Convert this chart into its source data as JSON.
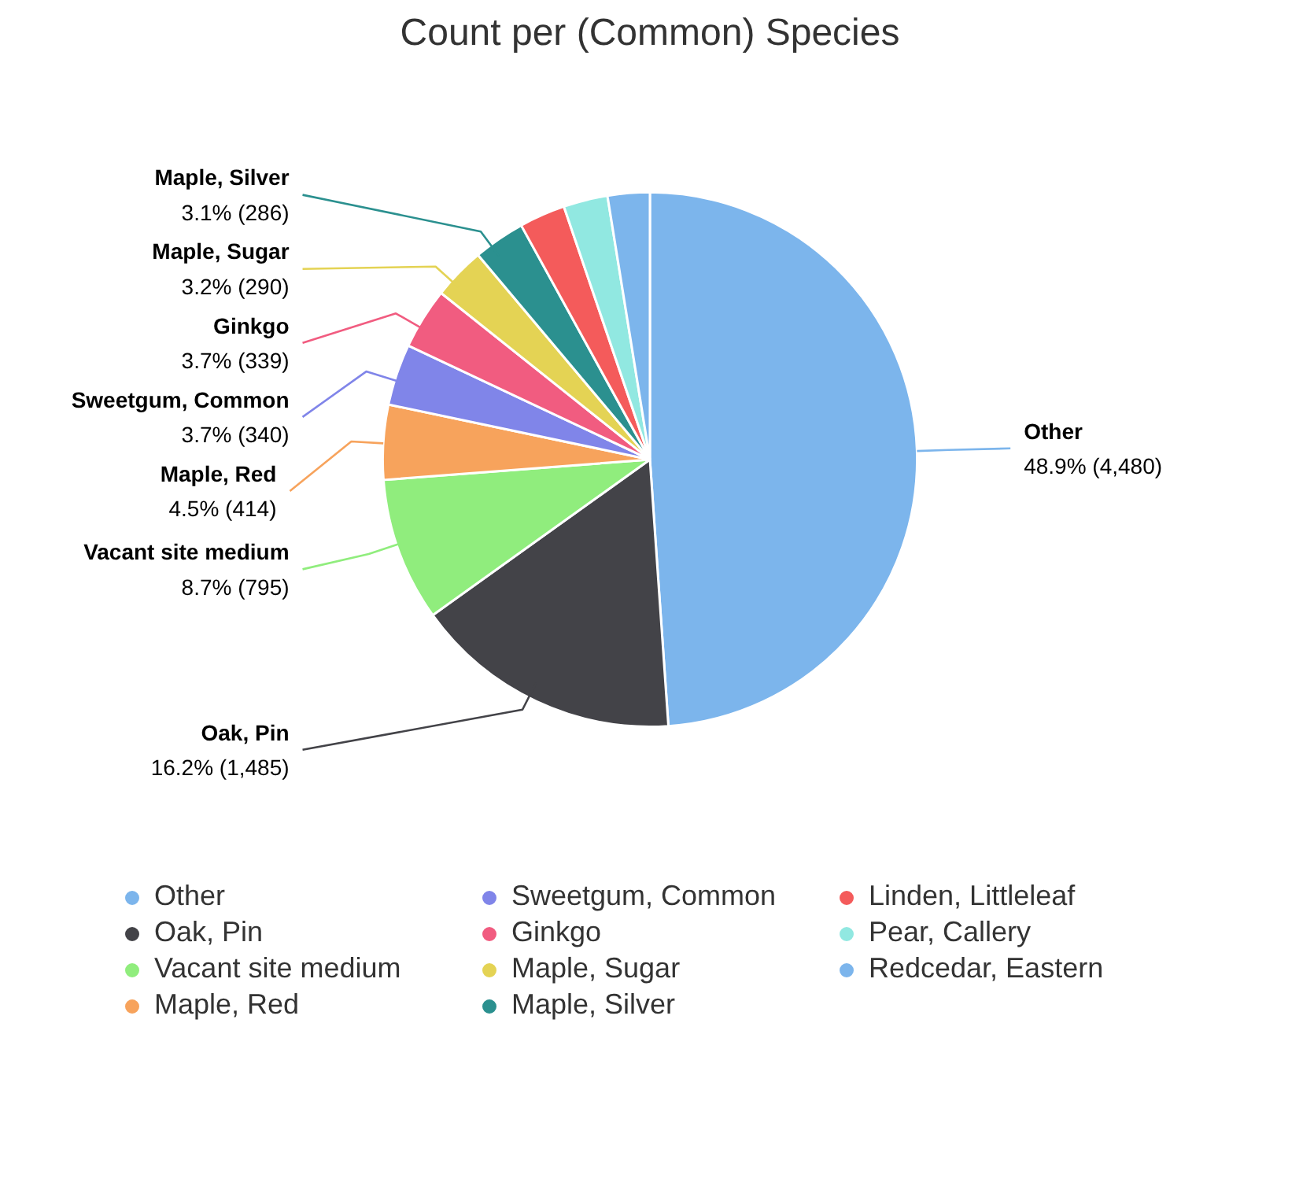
{
  "chart_data": {
    "type": "pie",
    "title": "Count per (Common) Species",
    "categories": [
      "Other",
      "Oak, Pin",
      "Vacant site medium",
      "Maple, Red",
      "Sweetgum, Common",
      "Ginkgo",
      "Maple, Sugar",
      "Maple, Silver",
      "Linden, Littleleaf",
      "Pear, Callery",
      "Redcedar, Eastern"
    ],
    "values": [
      4480,
      1485,
      795,
      414,
      340,
      339,
      290,
      286,
      255,
      245,
      233
    ],
    "value_labels": [
      "48.9% (4,480)",
      "16.2% (1,485)",
      "8.7% (795)",
      "4.5% (414)",
      "3.7% (340)",
      "3.7% (339)",
      "3.2% (290)",
      "3.1% (286)",
      null,
      null,
      null
    ],
    "colors": [
      "#7cb5ec",
      "#434348",
      "#90ed7d",
      "#f7a35c",
      "#8085e9",
      "#f15c80",
      "#e4d354",
      "#2b908f",
      "#f45b5b",
      "#91e8e1",
      "#7cb5ec"
    ],
    "legend": "bottom"
  }
}
